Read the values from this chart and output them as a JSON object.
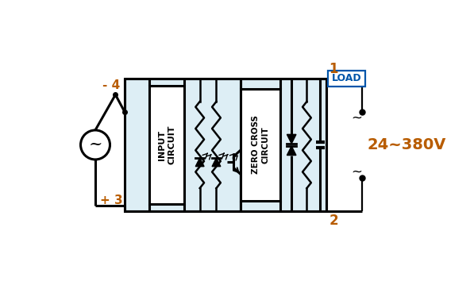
{
  "bg_color": "#ffffff",
  "line_color": "#000000",
  "orange_color": "#b85c00",
  "blue_color": "#0055aa",
  "load_text": "LOAD",
  "voltage_text": "24~380V",
  "label_minus4": "- 4",
  "label_plus3": "+ 3",
  "label_1": "1",
  "label_2": "2",
  "input_circuit_text": "INPUT\nCIRCUIT",
  "zero_cross_text": "ZERO CROSS\nCIRCUIT",
  "tilde": "~",
  "light_blue": "#ddeef5",
  "lw_main": 2.2,
  "lw_thin": 1.6
}
